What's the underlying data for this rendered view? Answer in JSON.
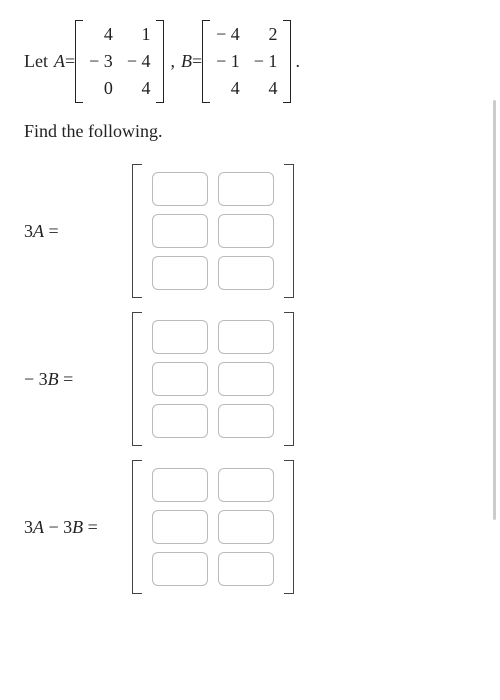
{
  "problem": {
    "let_label": "Let ",
    "var_A": "A",
    "var_B": "B",
    "equals": " = ",
    "comma": ", ",
    "period": ".",
    "matrix_A": {
      "cells": [
        "4",
        "1",
        "− 3",
        "− 4",
        "0",
        "4"
      ]
    },
    "matrix_B": {
      "cells": [
        "− 4",
        "2",
        "− 1",
        "− 1",
        "4",
        "4"
      ]
    }
  },
  "find_text": "Find the following.",
  "answers": {
    "labels": {
      "a1": "3A =",
      "a2": "− 3B =",
      "a3": "3A − 3B ="
    },
    "italic_A": "A",
    "italic_B": "B",
    "three": "3",
    "minus": "−",
    "equals": " ="
  },
  "style": {
    "input_border": "#bbb",
    "bracket_color": "#222"
  }
}
